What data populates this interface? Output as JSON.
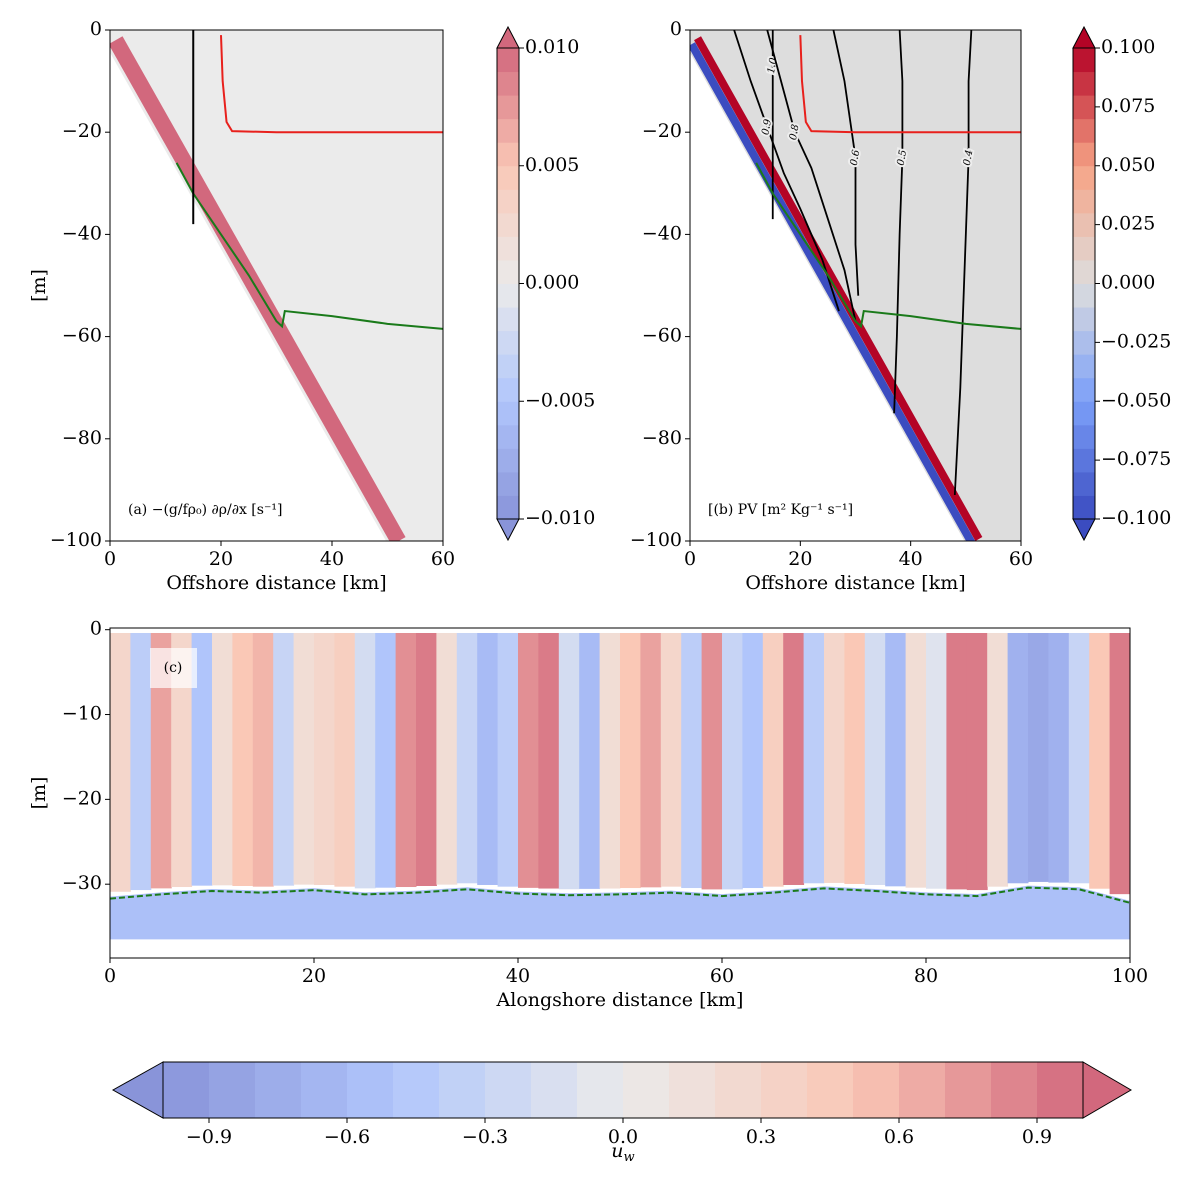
{
  "chart_data": [
    {
      "type": "section",
      "annotation": "(a) −(g/fρ₀) ∂ρ/∂x [s⁻¹]",
      "xlabel": "Offshore distance [km]",
      "ylabel": "[m]",
      "xlim": [
        0,
        60
      ],
      "ylim": [
        -100,
        0
      ],
      "xticks": [
        0,
        20,
        40,
        60
      ],
      "yticks": [
        0,
        {
          "value": -20,
          "label": "−20"
        },
        {
          "value": -40,
          "label": "−40"
        },
        {
          "value": -60,
          "label": "−60"
        },
        {
          "value": -80,
          "label": "−80"
        },
        {
          "value": -100,
          "label": "−100"
        }
      ],
      "alpha": 0.6,
      "interior_value": 0,
      "slope_values": [
        0.01
      ],
      "bottom": {
        "x": [
          1,
          52
        ],
        "y": [
          -2,
          -100
        ]
      },
      "series": [
        {
          "color": "#e8201c",
          "x": [
            20,
            20.3,
            21,
            22,
            30,
            45,
            60
          ],
          "y": [
            -1,
            -10,
            -18,
            -19.8,
            -20,
            -20,
            -20
          ]
        },
        {
          "color": "#1a7a1a",
          "x": [
            12,
            15,
            20,
            25,
            30,
            31,
            31.5,
            40,
            50,
            60
          ],
          "y": [
            -26,
            -32,
            -40,
            -48,
            -57,
            -58,
            -55,
            -56,
            -57.5,
            -58.5
          ]
        },
        {
          "color": "#000000",
          "x": [
            15,
            15
          ],
          "y": [
            0,
            -38
          ]
        }
      ],
      "colorbar": {
        "lim": [
          -0.01,
          0.01
        ],
        "ticks": [
          {
            "value": 0.01,
            "label": "0.010"
          },
          {
            "value": 0.005,
            "label": "0.005"
          },
          {
            "value": 0,
            "label": "0.000"
          },
          {
            "value": -0.005,
            "label": "−0.005"
          },
          {
            "value": -0.01,
            "label": "−0.010"
          }
        ]
      }
    },
    {
      "type": "section",
      "annotation": "[(b) PV [m² Kg⁻¹ s⁻¹]",
      "xlabel": "Offshore distance [km]",
      "xlim": [
        0,
        60
      ],
      "ylim": [
        -100,
        0
      ],
      "xticks": [
        0,
        20,
        40,
        60
      ],
      "yticks": [
        0,
        {
          "value": -20,
          "label": "−20"
        },
        {
          "value": -40,
          "label": "−40"
        },
        {
          "value": -60,
          "label": "−60"
        },
        {
          "value": -80,
          "label": "−80"
        },
        {
          "value": -100,
          "label": "−100"
        }
      ],
      "alpha": 1,
      "interior_value": 0,
      "slope_values": [
        0.1,
        -0.1
      ],
      "bottom": {
        "x": [
          1,
          52
        ],
        "y": [
          -2,
          -100
        ]
      },
      "series": [
        {
          "color": "#e8201c",
          "x": [
            20,
            20.3,
            21,
            22,
            30,
            45,
            60
          ],
          "y": [
            -1,
            -10,
            -18,
            -19.8,
            -20,
            -20,
            -20
          ]
        },
        {
          "color": "#1a7a1a",
          "x": [
            12,
            15,
            20,
            25,
            30,
            31,
            31.5,
            40,
            50,
            60
          ],
          "y": [
            -26,
            -32,
            -40,
            -48,
            -57,
            -58,
            -55,
            -56,
            -57.5,
            -58.5
          ]
        }
      ],
      "contours": [
        {
          "level": {
            "value": 1,
            "label": "1.0"
          },
          "x": [
            15,
            15,
            15
          ],
          "y": [
            0,
            -7,
            -37
          ]
        },
        {
          "level": {
            "value": 0.9,
            "label": "0.9"
          },
          "x": [
            8,
            11,
            14,
            17,
            20,
            24,
            27
          ],
          "y": [
            0,
            -10,
            -19,
            -28,
            -35,
            -45,
            -55
          ]
        },
        {
          "level": {
            "value": 0.8,
            "label": "0.8"
          },
          "x": [
            14,
            16,
            19,
            22,
            25,
            28,
            30
          ],
          "y": [
            0,
            -8,
            -20,
            -27,
            -37,
            -47,
            -57
          ]
        },
        {
          "level": {
            "value": 0.6,
            "label": "0.6"
          },
          "x": [
            26,
            28,
            30,
            30,
            30,
            30.5
          ],
          "y": [
            0,
            -10,
            -25,
            -35,
            -42,
            -52
          ]
        },
        {
          "level": {
            "value": 0.5,
            "label": "0.5"
          },
          "x": [
            38,
            38.5,
            38.5,
            38,
            37.5,
            37
          ],
          "y": [
            0,
            -10,
            -25,
            -40,
            -60,
            -75
          ]
        },
        {
          "level": {
            "value": 0.4,
            "label": "0.4"
          },
          "x": [
            51,
            50.5,
            50.5,
            50,
            49,
            48
          ],
          "y": [
            0,
            -10,
            -25,
            -40,
            -70,
            -91
          ]
        }
      ],
      "colorbar": {
        "lim": [
          -0.1,
          0.1
        ],
        "ticks": [
          {
            "value": 0.1,
            "label": "0.100"
          },
          {
            "value": 0.075,
            "label": "0.075"
          },
          {
            "value": 0.05,
            "label": "0.050"
          },
          {
            "value": 0.025,
            "label": "0.025"
          },
          {
            "value": 0,
            "label": "0.000"
          },
          {
            "value": -0.025,
            "label": "−0.025"
          },
          {
            "value": -0.05,
            "label": "−0.050"
          },
          {
            "value": -0.075,
            "label": "−0.075"
          },
          {
            "value": -0.1,
            "label": "−0.100"
          }
        ]
      }
    },
    {
      "type": "alongshore",
      "annotation": "(c)",
      "xlabel": "Alongshore distance [km]",
      "ylabel": "[m]",
      "xlim": [
        0,
        100
      ],
      "ylim": [
        -38.7,
        0.2
      ],
      "xticks": [
        0,
        20,
        40,
        60,
        80,
        100
      ],
      "yticks": [
        0,
        {
          "value": -10,
          "label": "−10"
        },
        {
          "value": -20,
          "label": "−20"
        },
        {
          "value": -30,
          "label": "−30"
        }
      ],
      "alpha": 0.6,
      "columns": {
        "x": [
          1,
          3,
          5,
          7,
          9,
          11,
          13,
          15,
          17,
          19,
          21,
          23,
          25,
          27,
          29,
          31,
          33,
          35,
          37,
          39,
          41,
          43,
          45,
          47,
          49,
          51,
          53,
          55,
          57,
          59,
          61,
          63,
          65,
          67,
          69,
          71,
          73,
          75,
          77,
          79,
          81,
          83,
          85,
          87,
          89,
          91,
          93,
          95,
          97,
          99
        ],
        "values": [
          0.3,
          -0.4,
          0.7,
          0.3,
          -0.5,
          0.2,
          0.5,
          0.6,
          -0.3,
          0.2,
          0.3,
          0.4,
          -0.2,
          -0.5,
          0.8,
          0.9,
          0.2,
          -0.3,
          -0.6,
          -0.4,
          0.8,
          0.9,
          -0.2,
          -0.6,
          0.2,
          0.5,
          0.7,
          0.3,
          -0.4,
          0.8,
          -0.3,
          -0.5,
          0.4,
          0.9,
          -0.4,
          0.3,
          0.5,
          -0.2,
          -0.6,
          0.2,
          -0.1,
          0.9,
          0.9,
          0.2,
          -0.7,
          -0.8,
          -0.7,
          -0.3,
          0.5,
          0.9
        ]
      },
      "deep_value": -0.55,
      "deep_bottom": -36.5,
      "series": [
        {
          "color": "#1a7a1a",
          "dashed": true,
          "x": [
            0,
            5,
            10,
            15,
            20,
            25,
            30,
            35,
            40,
            45,
            50,
            55,
            60,
            65,
            70,
            75,
            80,
            85,
            90,
            95,
            100
          ],
          "y": [
            -31.7,
            -31.2,
            -30.8,
            -31,
            -30.7,
            -31.2,
            -31,
            -30.6,
            -31.1,
            -31.3,
            -31.2,
            -31,
            -31.4,
            -31,
            -30.5,
            -30.8,
            -31.2,
            -31.4,
            -30.4,
            -30.6,
            -32.2
          ]
        }
      ],
      "colorbar": {
        "lim": [
          -1,
          1
        ],
        "label": {
          "base": "u",
          "sub": "w"
        },
        "ticks": [
          {
            "value": -0.9,
            "label": "−0.9"
          },
          {
            "value": -0.6,
            "label": "−0.6"
          },
          {
            "value": -0.3,
            "label": "−0.3"
          },
          {
            "value": 0,
            "label": "0.0"
          },
          0.3,
          0.6,
          0.9
        ]
      }
    }
  ]
}
